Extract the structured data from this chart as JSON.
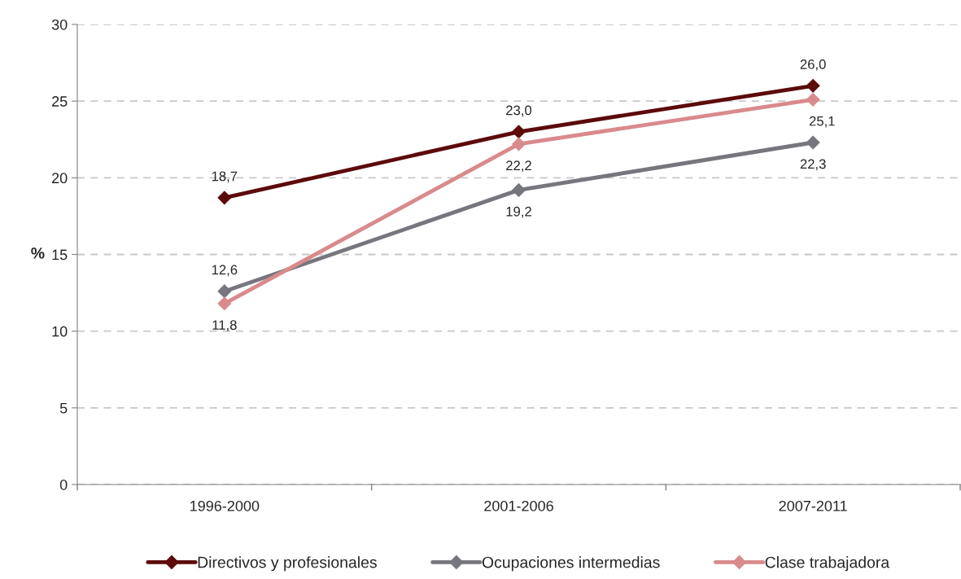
{
  "chart_data": {
    "type": "line",
    "ylabel": "%",
    "categories": [
      "1996-2000",
      "2001-2006",
      "2007-2011"
    ],
    "series": [
      {
        "name": "Directivos y profesionales",
        "color": "#5c0a0a",
        "values": [
          18.7,
          23.0,
          26.0
        ],
        "value_labels": [
          "18,7",
          "23,0",
          "26,0"
        ]
      },
      {
        "name": "Ocupaciones intermedias",
        "color": "#76767e",
        "values": [
          12.6,
          19.2,
          22.3
        ],
        "value_labels": [
          "12,6",
          "19,2",
          "22,3"
        ]
      },
      {
        "name": "Clase trabajadora",
        "color": "#d98a8c",
        "values": [
          11.8,
          22.2,
          25.1
        ],
        "value_labels": [
          "11,8",
          "22,2",
          "25,1"
        ]
      }
    ],
    "ylim": [
      0,
      30
    ],
    "yticks": [
      0,
      5,
      10,
      15,
      20,
      25,
      30
    ],
    "grid": "y",
    "legend": "bottom",
    "marker": "diamond",
    "line_style": "solid"
  }
}
